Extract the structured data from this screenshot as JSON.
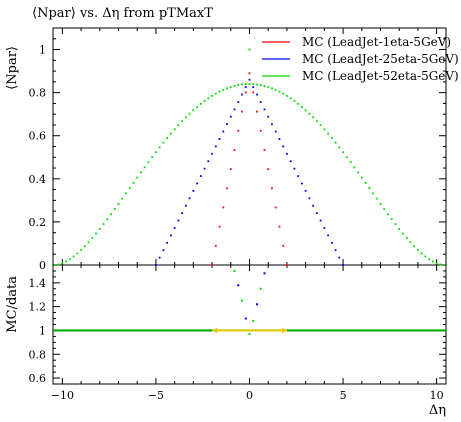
{
  "chart_data": [
    {
      "panel": "main",
      "type": "scatter",
      "title": "⟨Npar⟩ vs. Δη from pTMaxT",
      "ylabel": "⟨Npar⟩",
      "xlabel": "",
      "xlim": [
        -10.5,
        10.5
      ],
      "ylim": [
        0,
        1.1
      ],
      "xticks": [
        -10,
        -5,
        0,
        5,
        10
      ],
      "yticks": [
        0,
        0.2,
        0.4,
        0.6,
        0.8,
        1
      ],
      "ytick_labels": [
        "0",
        "0.2",
        "0.4",
        "0.6",
        "0.8",
        "1"
      ],
      "legend": {
        "position": "top-right"
      },
      "series": [
        {
          "name": "MC (LeadJet-1eta-5GeV)",
          "color": "#ff0000",
          "shape": "triangle",
          "peak": [
            0,
            0.89
          ],
          "zero_at": 2.0,
          "spacing": 0.2
        },
        {
          "name": "MC (LeadJet-25eta-5GeV)",
          "color": "#0000ff",
          "shape": "triangle",
          "peak": [
            0,
            0.86
          ],
          "zero_at": 5.0,
          "spacing": 0.2
        },
        {
          "name": "MC (LeadJet-52eta-5GeV)",
          "color": "#00dd00",
          "shape": "smooth",
          "peak": [
            0,
            0.84
          ],
          "zero_at": 10.4,
          "spacing": 0.2
        }
      ],
      "extra_points": [
        {
          "x": 0,
          "y": 1.0,
          "color": "#00dd00"
        }
      ]
    },
    {
      "panel": "ratio",
      "type": "line",
      "ylabel": "MC/data",
      "xlabel": "Δη",
      "xlim": [
        -10.5,
        10.5
      ],
      "ylim": [
        0.55,
        1.55
      ],
      "xticks": [
        -10,
        -5,
        0,
        5,
        10
      ],
      "xtick_labels": [
        "−10",
        "−5",
        "0",
        "5",
        "10"
      ],
      "yticks": [
        0.6,
        0.8,
        1,
        1.2,
        1.4
      ],
      "ytick_labels": [
        "0.6",
        "0.8",
        "1",
        "1.2",
        "1.4"
      ],
      "reference": {
        "y": 1,
        "color": "#00aa00"
      },
      "band": {
        "x": [
          -2,
          2
        ],
        "y": 1,
        "color": "#e8c800"
      },
      "v_points": [
        {
          "x": -0.8,
          "y": 1.5,
          "color": "#00dd00"
        },
        {
          "x": -0.6,
          "y": 1.38,
          "color": "#0000ff"
        },
        {
          "x": -0.4,
          "y": 1.25,
          "color": "#00dd00"
        },
        {
          "x": -0.2,
          "y": 1.1,
          "color": "#0000ff"
        },
        {
          "x": 0.0,
          "y": 0.97,
          "color": "#00dd00"
        },
        {
          "x": 0.2,
          "y": 1.08,
          "color": "#00dd00"
        },
        {
          "x": 0.4,
          "y": 1.22,
          "color": "#0000ff"
        },
        {
          "x": 0.6,
          "y": 1.35,
          "color": "#00dd00"
        },
        {
          "x": 0.8,
          "y": 1.48,
          "color": "#0000ff"
        }
      ]
    }
  ]
}
